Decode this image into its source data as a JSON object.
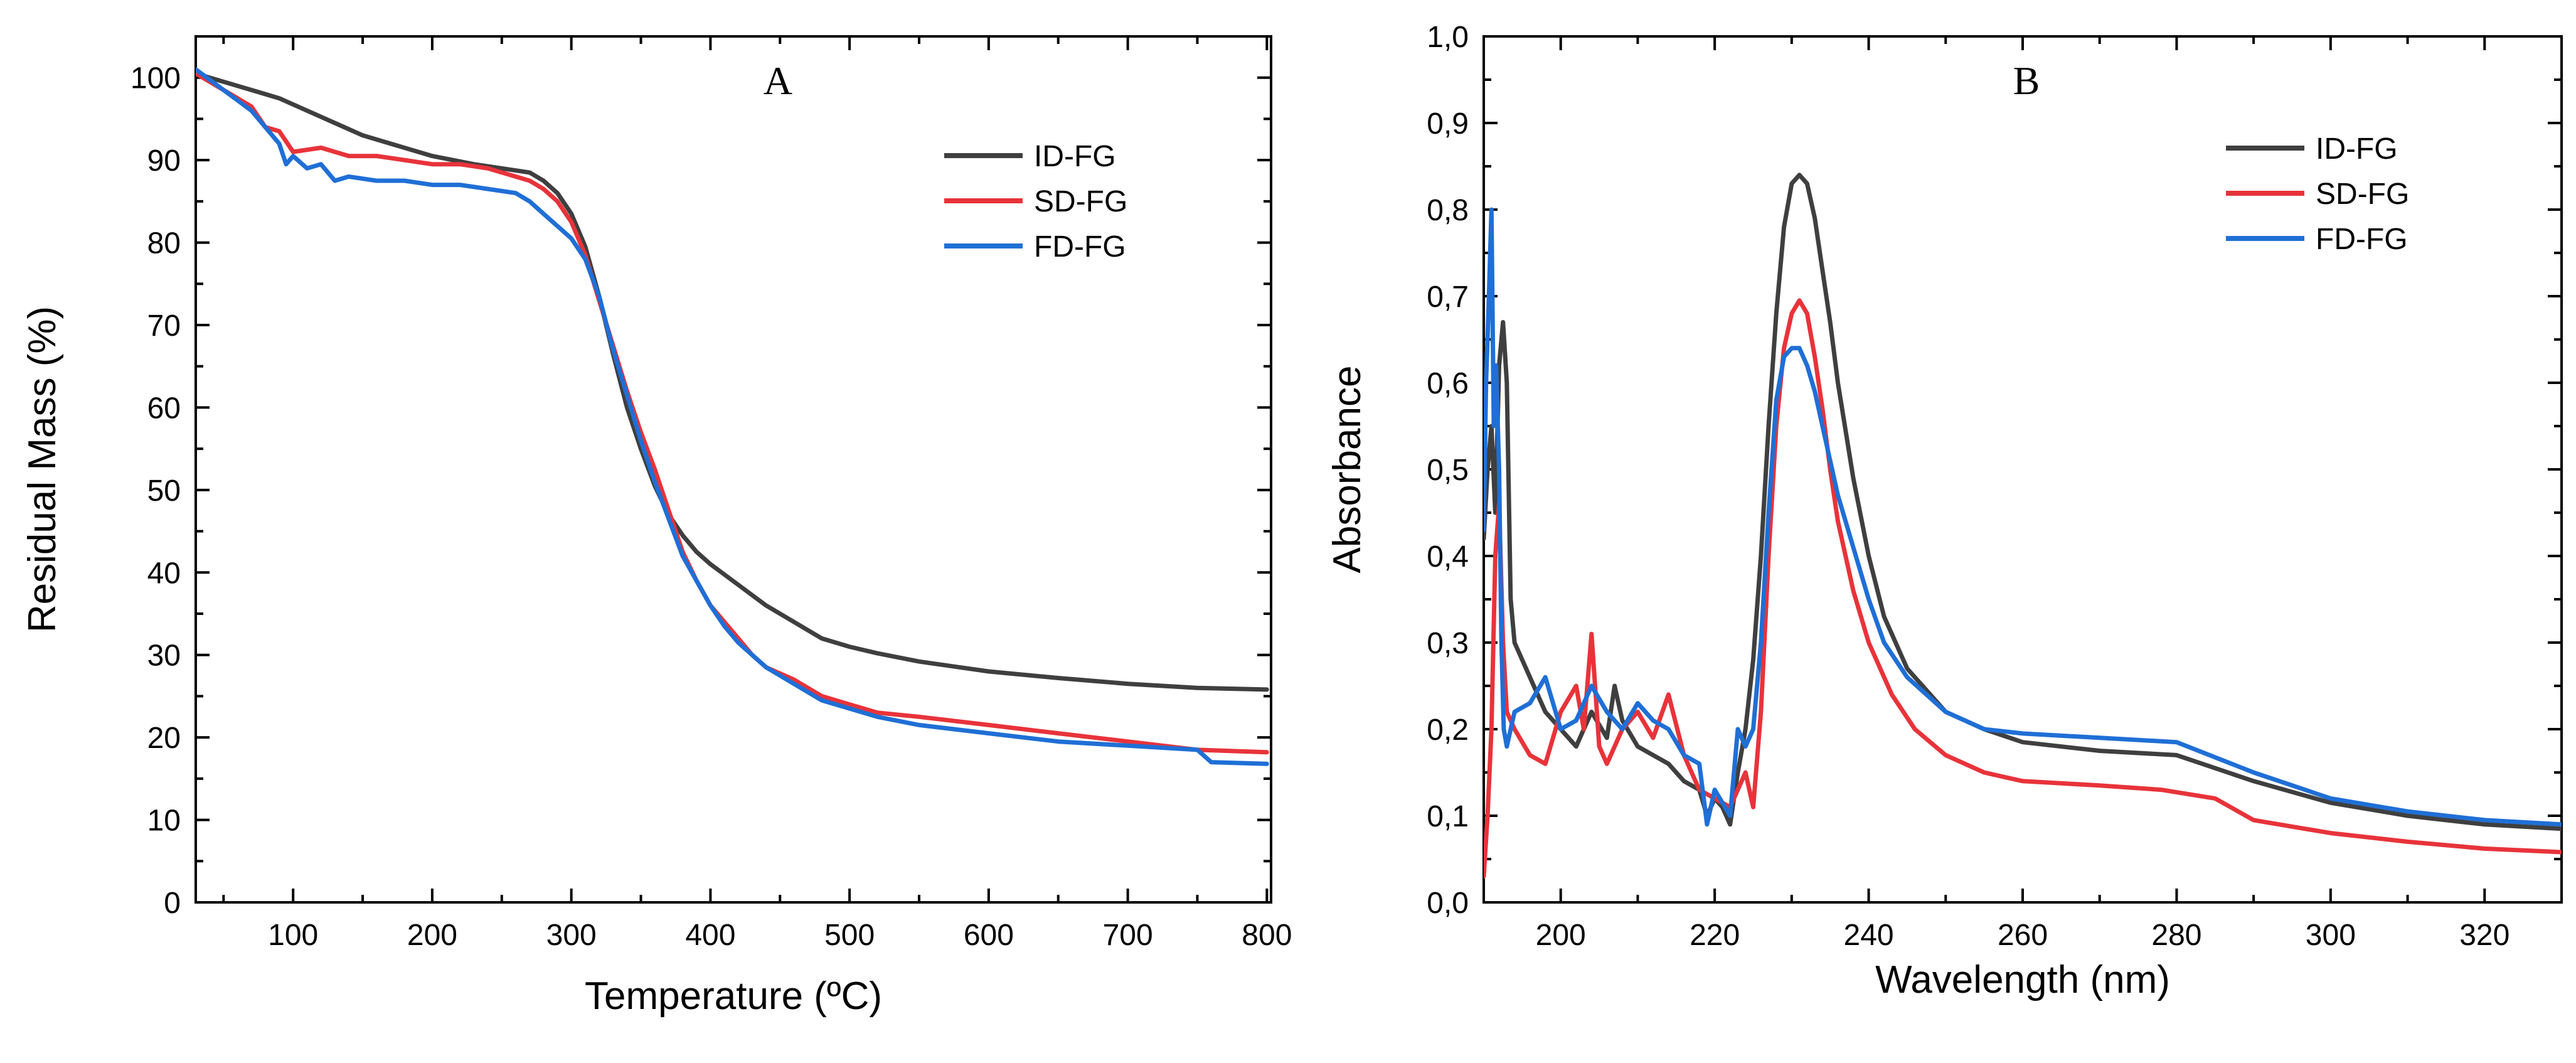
{
  "chart_data": [
    {
      "type": "line",
      "panel": "A",
      "xlabel": "Temperature (ºC)",
      "ylabel": "Residual Mass (%)",
      "xlim": [
        30,
        803
      ],
      "ylim": [
        0,
        105
      ],
      "xticks": [
        100,
        200,
        300,
        400,
        500,
        600,
        700,
        800
      ],
      "yticks": [
        0,
        10,
        20,
        30,
        40,
        50,
        60,
        70,
        80,
        90,
        100
      ],
      "x_tick_labels": [
        "100",
        "200",
        "300",
        "400",
        "500",
        "600",
        "700",
        "800"
      ],
      "y_tick_labels": [
        "0",
        "10",
        "20",
        "30",
        "40",
        "50",
        "60",
        "70",
        "80",
        "90",
        "100"
      ],
      "grid": false,
      "legend_position": "top-right",
      "series": [
        {
          "name": "ID-FG",
          "color": "#3f3f3f",
          "x": [
            30,
            50,
            70,
            90,
            110,
            130,
            150,
            170,
            200,
            230,
            250,
            270,
            280,
            290,
            300,
            310,
            320,
            330,
            340,
            350,
            360,
            370,
            380,
            390,
            400,
            420,
            440,
            460,
            480,
            500,
            520,
            550,
            600,
            650,
            700,
            750,
            800
          ],
          "y": [
            100.5,
            99.5,
            98.5,
            97.5,
            96,
            94.5,
            93,
            92,
            90.5,
            89.5,
            89,
            88.5,
            87.5,
            86,
            83.5,
            79.5,
            73.5,
            66.5,
            60,
            55,
            50.5,
            47,
            44.5,
            42.5,
            41,
            38.5,
            36,
            34,
            32,
            31,
            30.2,
            29.2,
            28,
            27.2,
            26.5,
            26,
            25.8
          ]
        },
        {
          "name": "SD-FG",
          "color": "#e8333a",
          "x": [
            30,
            50,
            70,
            80,
            90,
            100,
            120,
            140,
            160,
            180,
            200,
            220,
            240,
            260,
            270,
            280,
            290,
            300,
            310,
            320,
            330,
            340,
            350,
            360,
            370,
            380,
            390,
            400,
            410,
            420,
            430,
            440,
            460,
            480,
            500,
            520,
            550,
            600,
            650,
            700,
            750,
            800
          ],
          "y": [
            100.5,
            98.5,
            96.5,
            94,
            93.5,
            91,
            91.5,
            90.5,
            90.5,
            90,
            89.5,
            89.5,
            89,
            88,
            87.5,
            86.5,
            85,
            82.5,
            78.5,
            73,
            67.5,
            62,
            57,
            52.5,
            47.5,
            42.5,
            39,
            36,
            34,
            32,
            30,
            28.5,
            27,
            25,
            24,
            23,
            22.5,
            21.5,
            20.5,
            19.5,
            18.5,
            18.2
          ]
        },
        {
          "name": "FD-FG",
          "color": "#1f6fd6",
          "x": [
            30,
            50,
            70,
            80,
            90,
            95,
            100,
            110,
            120,
            130,
            140,
            160,
            180,
            200,
            220,
            240,
            260,
            270,
            280,
            290,
            300,
            310,
            320,
            330,
            340,
            350,
            360,
            370,
            380,
            390,
            400,
            410,
            420,
            430,
            440,
            460,
            480,
            500,
            520,
            550,
            600,
            650,
            700,
            750,
            760,
            800
          ],
          "y": [
            101,
            98.5,
            96,
            94,
            92,
            89.5,
            90.5,
            89,
            89.5,
            87.5,
            88,
            87.5,
            87.5,
            87,
            87,
            86.5,
            86,
            85,
            83.5,
            82,
            80.5,
            78,
            73.5,
            67,
            61.5,
            56,
            51,
            46.5,
            42,
            39,
            36,
            33.5,
            31.5,
            30,
            28.5,
            26.5,
            24.5,
            23.5,
            22.5,
            21.5,
            20.5,
            19.5,
            19,
            18.5,
            17,
            16.8
          ]
        }
      ]
    },
    {
      "type": "line",
      "panel": "B",
      "xlabel": "Wavelength (nm)",
      "ylabel": "Absorbance",
      "xlim": [
        190,
        330
      ],
      "ylim": [
        0,
        1.0
      ],
      "xticks": [
        200,
        220,
        240,
        260,
        280,
        300,
        320
      ],
      "yticks": [
        0,
        0.1,
        0.2,
        0.3,
        0.4,
        0.5,
        0.6,
        0.7,
        0.8,
        0.9,
        1.0
      ],
      "x_tick_labels": [
        "200",
        "220",
        "240",
        "260",
        "280",
        "300",
        "320"
      ],
      "y_tick_labels": [
        "0,0",
        "0,1",
        "0,2",
        "0,3",
        "0,4",
        "0,5",
        "0,6",
        "0,7",
        "0,8",
        "0,9",
        "1,0"
      ],
      "grid": false,
      "legend_position": "top-right",
      "series": [
        {
          "name": "ID-FG",
          "color": "#3f3f3f",
          "x": [
            190,
            190.5,
            191,
            191.5,
            192,
            192.5,
            193,
            193.5,
            194,
            196,
            198,
            200,
            202,
            204,
            206,
            207,
            208,
            210,
            212,
            214,
            216,
            218,
            219,
            220,
            221,
            222,
            223,
            224,
            225,
            226,
            227,
            228,
            229,
            230,
            231,
            232,
            233,
            234,
            235,
            236,
            238,
            240,
            242,
            245,
            250,
            255,
            260,
            270,
            280,
            290,
            300,
            310,
            320,
            330
          ],
          "y": [
            0.42,
            0.5,
            0.55,
            0.45,
            0.62,
            0.67,
            0.6,
            0.35,
            0.3,
            0.26,
            0.22,
            0.2,
            0.18,
            0.22,
            0.19,
            0.25,
            0.21,
            0.18,
            0.17,
            0.16,
            0.14,
            0.13,
            0.1,
            0.12,
            0.11,
            0.09,
            0.15,
            0.2,
            0.28,
            0.4,
            0.55,
            0.68,
            0.78,
            0.83,
            0.84,
            0.83,
            0.79,
            0.73,
            0.67,
            0.6,
            0.49,
            0.4,
            0.33,
            0.27,
            0.22,
            0.2,
            0.185,
            0.175,
            0.17,
            0.14,
            0.115,
            0.1,
            0.09,
            0.085
          ]
        },
        {
          "name": "SD-FG",
          "color": "#e8333a",
          "x": [
            190,
            190.5,
            191,
            191.5,
            192,
            192.5,
            193,
            194,
            196,
            198,
            200,
            202,
            203,
            204,
            205,
            206,
            208,
            210,
            212,
            214,
            216,
            218,
            220,
            222,
            224,
            225,
            226,
            227,
            228,
            229,
            230,
            231,
            232,
            233,
            234,
            235,
            236,
            238,
            240,
            243,
            246,
            250,
            255,
            260,
            270,
            278,
            285,
            290,
            300,
            310,
            320,
            330
          ],
          "y": [
            0.03,
            0.1,
            0.2,
            0.4,
            0.46,
            0.3,
            0.22,
            0.2,
            0.17,
            0.16,
            0.22,
            0.25,
            0.2,
            0.31,
            0.18,
            0.16,
            0.2,
            0.22,
            0.19,
            0.24,
            0.17,
            0.13,
            0.12,
            0.11,
            0.15,
            0.11,
            0.22,
            0.4,
            0.55,
            0.64,
            0.68,
            0.695,
            0.68,
            0.63,
            0.57,
            0.5,
            0.44,
            0.36,
            0.3,
            0.24,
            0.2,
            0.17,
            0.15,
            0.14,
            0.135,
            0.13,
            0.12,
            0.095,
            0.08,
            0.07,
            0.062,
            0.058
          ]
        },
        {
          "name": "FD-FG",
          "color": "#1f6fd6",
          "x": [
            190,
            190.3,
            190.6,
            191,
            191.3,
            191.6,
            192,
            192.3,
            192.6,
            193,
            194,
            196,
            198,
            200,
            202,
            204,
            206,
            208,
            210,
            212,
            214,
            216,
            218,
            219,
            220,
            222,
            223,
            224,
            225,
            226,
            227,
            228,
            229,
            230,
            231,
            232,
            233,
            234,
            235,
            236,
            238,
            240,
            242,
            245,
            250,
            255,
            260,
            270,
            280,
            290,
            300,
            310,
            320,
            330
          ],
          "y": [
            0.43,
            0.6,
            0.68,
            0.8,
            0.55,
            0.62,
            0.5,
            0.3,
            0.2,
            0.18,
            0.22,
            0.23,
            0.26,
            0.2,
            0.21,
            0.25,
            0.22,
            0.2,
            0.23,
            0.21,
            0.2,
            0.17,
            0.16,
            0.09,
            0.13,
            0.1,
            0.2,
            0.18,
            0.2,
            0.3,
            0.45,
            0.58,
            0.63,
            0.64,
            0.64,
            0.62,
            0.59,
            0.55,
            0.51,
            0.47,
            0.41,
            0.35,
            0.3,
            0.26,
            0.22,
            0.2,
            0.195,
            0.19,
            0.185,
            0.15,
            0.12,
            0.105,
            0.095,
            0.09
          ]
        }
      ]
    }
  ]
}
